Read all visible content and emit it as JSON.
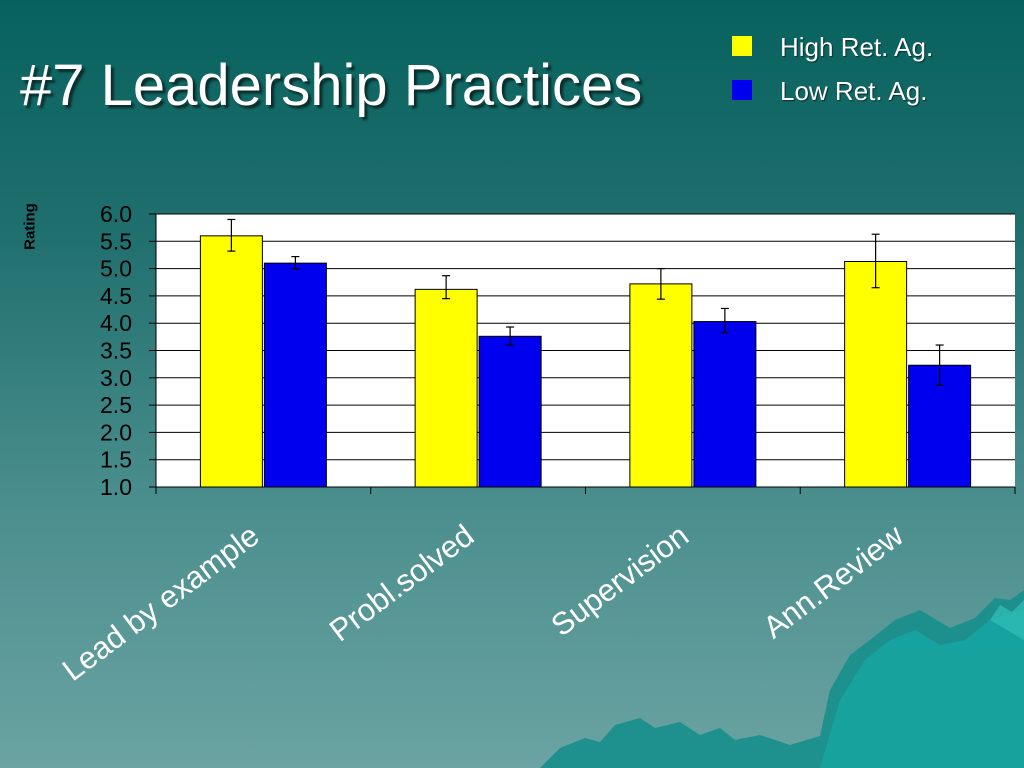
{
  "slide": {
    "title": "#7 Leadership Practices"
  },
  "legend": [
    {
      "label": "High  Ret. Ag.",
      "color": "#ffff00"
    },
    {
      "label": "Low Ret. Ag.",
      "color": "#0000ee"
    }
  ],
  "chart_data": {
    "type": "bar",
    "title": "",
    "xlabel": "",
    "ylabel": "Rating",
    "ylim": [
      1.0,
      6.0
    ],
    "yticks": [
      "1.0",
      "1.5",
      "2.0",
      "2.5",
      "3.0",
      "3.5",
      "4.0",
      "4.5",
      "5.0",
      "5.5",
      "6.0"
    ],
    "categories": [
      "Lead by example",
      "Probl.solved",
      "Supervision",
      "Ann.Review"
    ],
    "series": [
      {
        "name": "High  Ret. Ag.",
        "color": "#ffff00",
        "values": [
          5.6,
          4.62,
          4.72,
          5.13
        ],
        "err_low": [
          5.32,
          4.45,
          4.44,
          4.65
        ],
        "err_high": [
          5.9,
          4.87,
          5.0,
          5.63
        ]
      },
      {
        "name": "Low Ret. Ag.",
        "color": "#0000ee",
        "values": [
          5.1,
          3.76,
          4.03,
          3.23
        ],
        "err_low": [
          5.0,
          3.6,
          3.83,
          2.86
        ],
        "err_high": [
          5.22,
          3.93,
          4.27,
          3.6
        ]
      }
    ],
    "grid": true,
    "legend_position": "top-right"
  },
  "decor": {
    "background_color": "#1f6f6e",
    "mountain_icon": "mountain-landscape-icon"
  }
}
